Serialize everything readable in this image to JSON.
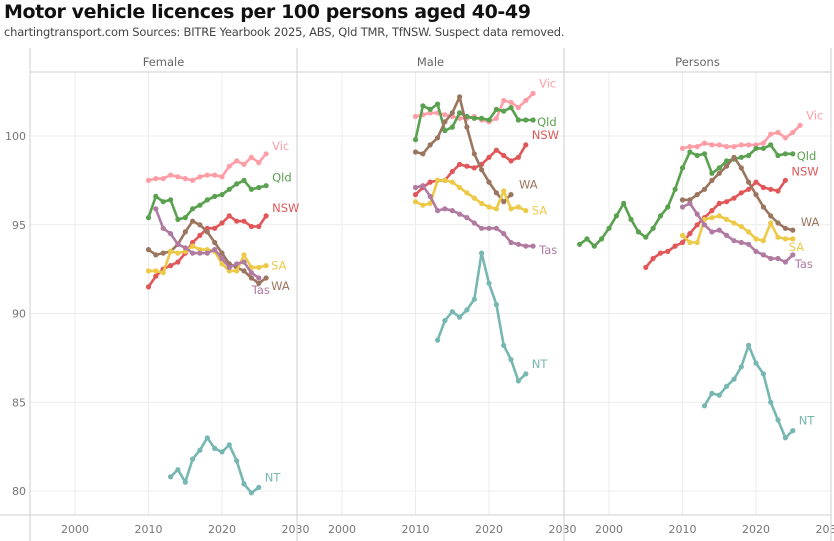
{
  "header": {
    "title": "Motor vehicle licences per 100 persons aged 40-49",
    "subtitle": "chartingtransport.com  Sources: BITRE Yearbook 2025, ABS, Qld TMR, TfNSW. Suspect data removed."
  },
  "chart_data": {
    "type": "line",
    "title": "Motor vehicle licences per 100 persons aged 40-49",
    "subtitle": "chartingtransport.com  Sources: BITRE Yearbook 2025, ABS, Qld TMR, TfNSW. Suspect data removed.",
    "xlabel": "",
    "ylabel": "",
    "xlim": [
      1994,
      2030
    ],
    "ylim": [
      78.7,
      103.1
    ],
    "x_ticks": [
      2000,
      2010,
      2020,
      2030
    ],
    "y_ticks": [
      80,
      85,
      90,
      95,
      100
    ],
    "grid": true,
    "legend": "direct-labels-right",
    "colors": {
      "Vic": "#ff9da7",
      "Qld": "#59a14f",
      "NSW": "#e15759",
      "WA": "#9c755f",
      "SA": "#edc948",
      "Tas": "#b07aa1",
      "NT": "#76b7b2"
    },
    "panels": [
      {
        "name": "Female",
        "series": [
          {
            "name": "Vic",
            "start": 2010,
            "values": [
              97.5,
              97.6,
              97.6,
              97.8,
              97.7,
              97.6,
              97.5,
              97.7,
              97.8,
              97.8,
              97.7,
              98.3,
              98.6,
              98.4,
              98.8,
              98.5,
              99.0
            ]
          },
          {
            "name": "Qld",
            "start": 2010,
            "values": [
              95.4,
              96.6,
              96.3,
              96.4,
              95.3,
              95.4,
              95.9,
              96.1,
              96.4,
              96.6,
              96.7,
              97.0,
              97.3,
              97.5,
              97.0,
              97.1,
              97.2
            ]
          },
          {
            "name": "NSW",
            "start": 2010,
            "values": [
              91.5,
              92.1,
              92.5,
              92.7,
              92.9,
              93.4,
              94.0,
              94.4,
              94.8,
              94.8,
              95.1,
              95.5,
              95.2,
              95.2,
              94.9,
              94.9,
              95.5
            ]
          },
          {
            "name": "WA",
            "start": 2010,
            "values": [
              93.6,
              93.3,
              93.4,
              93.5,
              93.9,
              94.6,
              95.2,
              95.0,
              94.6,
              94.0,
              93.4,
              92.8,
              92.6,
              92.4,
              92.0,
              91.7,
              92.0
            ]
          },
          {
            "name": "SA",
            "start": 2010,
            "values": [
              92.4,
              92.4,
              92.3,
              93.5,
              93.4,
              93.5,
              93.8,
              93.6,
              93.6,
              93.5,
              92.8,
              92.4,
              92.4,
              93.3,
              92.6,
              92.6,
              92.7
            ]
          },
          {
            "name": "Tas",
            "start": 2011,
            "values": [
              95.9,
              94.8,
              94.5,
              93.9,
              93.7,
              93.4,
              93.4,
              93.4,
              93.6,
              93.1,
              92.6,
              92.8,
              92.9,
              92.3,
              92.0
            ]
          },
          {
            "name": "NT",
            "start": 2013,
            "values": [
              80.8,
              81.2,
              80.5,
              81.8,
              82.3,
              83.0,
              82.4,
              82.2,
              82.6,
              81.7,
              80.4,
              79.9,
              80.2
            ]
          }
        ]
      },
      {
        "name": "Male",
        "series": [
          {
            "name": "Vic",
            "start": 2010,
            "values": [
              101.1,
              101.2,
              101.3,
              101.3,
              101.2,
              101.1,
              101.0,
              101.0,
              101.1,
              100.9,
              100.8,
              101.0,
              102.0,
              101.9,
              101.6,
              102.0,
              102.4
            ]
          },
          {
            "name": "Qld",
            "start": 2010,
            "values": [
              99.8,
              101.7,
              101.5,
              101.8,
              100.3,
              100.5,
              101.3,
              101.1,
              101.0,
              101.0,
              100.9,
              101.5,
              101.4,
              101.6,
              100.9,
              100.9,
              100.9
            ]
          },
          {
            "name": "NSW",
            "start": 2010,
            "values": [
              96.7,
              97.1,
              97.4,
              97.5,
              97.5,
              98.0,
              98.4,
              98.3,
              98.2,
              98.4,
              98.8,
              99.2,
              98.9,
              98.6,
              98.8,
              99.5
            ]
          },
          {
            "name": "WA",
            "start": 2010,
            "values": [
              99.1,
              99.0,
              99.5,
              99.9,
              100.8,
              101.3,
              102.2,
              100.5,
              99.0,
              98.1,
              97.4,
              96.8,
              96.3,
              96.7
            ]
          },
          {
            "name": "SA",
            "start": 2010,
            "values": [
              96.3,
              96.1,
              96.2,
              97.5,
              97.5,
              97.4,
              97.1,
              96.8,
              96.5,
              96.2,
              96.0,
              95.9,
              96.9,
              95.9,
              96.0,
              95.8
            ]
          },
          {
            "name": "Tas",
            "start": 2010,
            "values": [
              97.1,
              97.2,
              96.6,
              95.8,
              95.9,
              95.8,
              95.6,
              95.4,
              95.1,
              94.8,
              94.8,
              94.8,
              94.5,
              94.0,
              93.9,
              93.8,
              93.8
            ]
          },
          {
            "name": "NT",
            "start": 2013,
            "values": [
              88.5,
              89.6,
              90.1,
              89.8,
              90.2,
              90.8,
              93.4,
              91.7,
              90.5,
              88.2,
              87.4,
              86.2,
              86.6
            ]
          }
        ]
      },
      {
        "name": "Persons",
        "series": [
          {
            "name": "Vic",
            "start": 2010,
            "values": [
              99.3,
              99.4,
              99.4,
              99.6,
              99.5,
              99.5,
              99.4,
              99.4,
              99.5,
              99.5,
              99.5,
              99.6,
              100.1,
              100.2,
              99.9,
              100.2,
              100.6
            ]
          },
          {
            "name": "Qld",
            "start": 1996,
            "values": [
              93.9,
              94.2,
              93.8,
              94.2,
              94.8,
              95.5,
              96.2,
              95.3,
              94.6,
              94.3,
              94.8,
              95.5,
              96.0,
              97.0,
              98.2,
              99.1,
              98.9,
              99.0,
              97.9,
              98.2,
              98.6,
              98.7,
              98.8,
              98.9,
              99.3,
              99.3,
              99.5,
              98.9,
              99.0,
              99.0
            ]
          },
          {
            "name": "NSW",
            "start": 2005,
            "values": [
              92.6,
              93.1,
              93.4,
              93.5,
              93.8,
              94.0,
              94.5,
              95.0,
              95.4,
              95.8,
              96.2,
              96.3,
              96.5,
              96.8,
              97.0,
              97.4,
              97.1,
              97.0,
              96.9,
              97.5
            ]
          },
          {
            "name": "WA",
            "start": 2010,
            "values": [
              96.4,
              96.4,
              96.7,
              97.0,
              97.5,
              97.9,
              98.3,
              98.8,
              98.2,
              97.4,
              96.7,
              96.0,
              95.5,
              95.1,
              94.8,
              94.7
            ]
          },
          {
            "name": "SA",
            "start": 2010,
            "values": [
              94.4,
              94.0,
              94.0,
              95.3,
              95.4,
              95.5,
              95.3,
              95.1,
              94.9,
              94.6,
              94.2,
              94.1,
              95.1,
              94.3,
              94.2,
              94.2
            ]
          },
          {
            "name": "Tas",
            "start": 2010,
            "values": [
              96.0,
              96.2,
              95.6,
              95.0,
              94.6,
              94.7,
              94.4,
              94.1,
              94.0,
              93.9,
              93.5,
              93.3,
              93.1,
              93.1,
              92.9,
              93.3
            ]
          },
          {
            "name": "NT",
            "start": 2013,
            "values": [
              84.8,
              85.5,
              85.4,
              85.9,
              86.3,
              87.0,
              88.2,
              87.2,
              86.6,
              85.0,
              84.0,
              83.0,
              83.4
            ]
          }
        ]
      }
    ]
  }
}
